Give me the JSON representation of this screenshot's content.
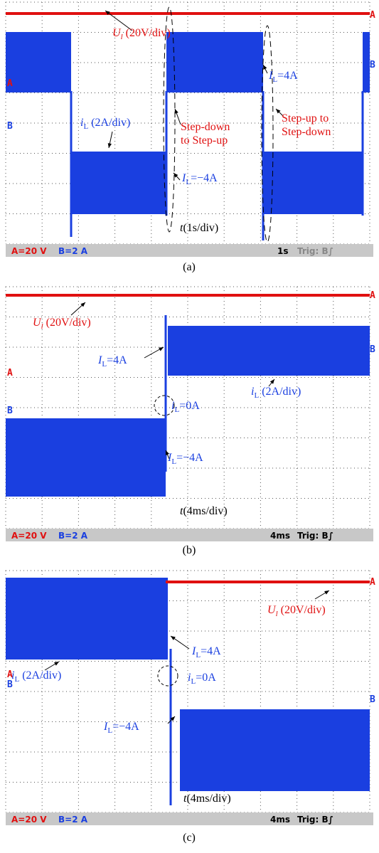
{
  "panels": [
    {
      "markers": [
        "A",
        "B"
      ],
      "labels": [
        {
          "parts": [
            "U",
            "l",
            " (20V/div)"
          ]
        },
        {
          "parts": [
            "I",
            "L",
            "=4A"
          ]
        },
        {
          "parts": [
            "i",
            "L",
            " (2A/div)"
          ]
        },
        {
          "parts": [
            "Step-down",
            "to Step-up"
          ]
        },
        {
          "parts": [
            "Step-up to",
            "Step-down"
          ]
        },
        {
          "parts": [
            "I",
            "L",
            "=−4A"
          ]
        },
        {
          "parts": [
            "t",
            "(1s/div)"
          ]
        }
      ],
      "status": {
        "ch_a": "A=20 V",
        "ch_b": "B=2 A",
        "timebase": "1s",
        "trigger": "Trig: B∫"
      },
      "caption": "(a)"
    },
    {
      "markers": [
        "A",
        "B"
      ],
      "labels": [
        {
          "parts": [
            "U",
            "l",
            " (20V/div)"
          ]
        },
        {
          "parts": [
            "I",
            "L",
            "=4A"
          ]
        },
        {
          "parts": [
            "i",
            "L",
            " (2A/div)"
          ]
        },
        {
          "parts": [
            "i",
            "L",
            "=0A"
          ]
        },
        {
          "parts": [
            "I",
            "L",
            "=−4A"
          ]
        },
        {
          "parts": [
            "t",
            "(4ms/div)"
          ]
        }
      ],
      "status": {
        "ch_a": "A=20 V",
        "ch_b": "B=2 A",
        "timebase": "4ms",
        "trigger": "Trig: B∫"
      },
      "caption": "(b)"
    },
    {
      "markers": [
        "A",
        "B"
      ],
      "labels": [
        {
          "parts": [
            "U",
            "l",
            " (20V/div)"
          ]
        },
        {
          "parts": [
            "I",
            "L",
            "=4A"
          ]
        },
        {
          "parts": [
            "i",
            "L",
            " (2A/div)"
          ]
        },
        {
          "parts": [
            "i",
            "L",
            "=0A"
          ]
        },
        {
          "parts": [
            "I",
            "L",
            "=−4A"
          ]
        },
        {
          "parts": [
            "t",
            "(4ms/div)"
          ]
        }
      ],
      "status": {
        "ch_a": "A=20 V",
        "ch_b": "B=2 A",
        "timebase": "4ms",
        "trigger": "Trig: B∫"
      },
      "caption": "(c)"
    }
  ]
}
